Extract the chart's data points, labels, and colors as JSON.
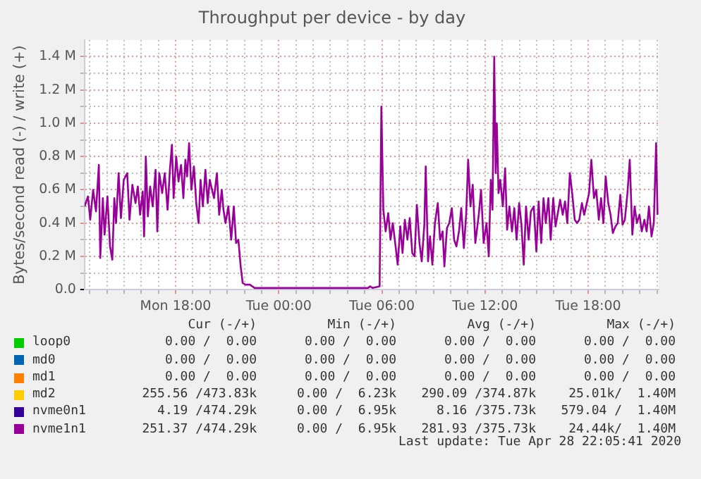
{
  "chart_data": {
    "type": "line",
    "title": "Throughput per device - by day",
    "ylabel": "Bytes/second read (-) / write (+)",
    "xlim": [
      "2020-04-27T12:42",
      "2020-04-28T22:06"
    ],
    "xticks": [
      {
        "value": "2020-04-27T13:00",
        "label": null
      },
      {
        "value": "2020-04-27T14:00",
        "label": null
      },
      {
        "value": "2020-04-27T15:00",
        "label": null
      },
      {
        "value": "2020-04-27T16:00",
        "label": null
      },
      {
        "value": "2020-04-27T17:00",
        "label": null
      },
      {
        "value": "2020-04-27T18:00",
        "label": "Mon 18:00"
      },
      {
        "value": "2020-04-27T19:00",
        "label": null
      },
      {
        "value": "2020-04-27T20:00",
        "label": null
      },
      {
        "value": "2020-04-27T21:00",
        "label": null
      },
      {
        "value": "2020-04-27T22:00",
        "label": null
      },
      {
        "value": "2020-04-27T23:00",
        "label": null
      },
      {
        "value": "2020-04-28T00:00",
        "label": "Tue 00:00"
      },
      {
        "value": "2020-04-28T01:00",
        "label": null
      },
      {
        "value": "2020-04-28T02:00",
        "label": null
      },
      {
        "value": "2020-04-28T03:00",
        "label": null
      },
      {
        "value": "2020-04-28T04:00",
        "label": null
      },
      {
        "value": "2020-04-28T05:00",
        "label": null
      },
      {
        "value": "2020-04-28T06:00",
        "label": "Tue 06:00"
      },
      {
        "value": "2020-04-28T07:00",
        "label": null
      },
      {
        "value": "2020-04-28T08:00",
        "label": null
      },
      {
        "value": "2020-04-28T09:00",
        "label": null
      },
      {
        "value": "2020-04-28T10:00",
        "label": null
      },
      {
        "value": "2020-04-28T11:00",
        "label": null
      },
      {
        "value": "2020-04-28T12:00",
        "label": "Tue 12:00"
      },
      {
        "value": "2020-04-28T13:00",
        "label": null
      },
      {
        "value": "2020-04-28T14:00",
        "label": null
      },
      {
        "value": "2020-04-28T15:00",
        "label": null
      },
      {
        "value": "2020-04-28T16:00",
        "label": null
      },
      {
        "value": "2020-04-28T17:00",
        "label": null
      },
      {
        "value": "2020-04-28T18:00",
        "label": "Tue 18:00"
      },
      {
        "value": "2020-04-28T19:00",
        "label": null
      },
      {
        "value": "2020-04-28T20:00",
        "label": null
      },
      {
        "value": "2020-04-28T21:00",
        "label": null
      },
      {
        "value": "2020-04-28T22:00",
        "label": null
      }
    ],
    "ylim": [
      0,
      1.5
    ],
    "yticks": [
      {
        "value": 0,
        "label": "0.0"
      },
      {
        "value": 0.1,
        "label": null
      },
      {
        "value": 0.2,
        "label": "0.2 M"
      },
      {
        "value": 0.3,
        "label": null
      },
      {
        "value": 0.4,
        "label": "0.4 M"
      },
      {
        "value": 0.5,
        "label": null
      },
      {
        "value": 0.6,
        "label": "0.6 M"
      },
      {
        "value": 0.7,
        "label": null
      },
      {
        "value": 0.8,
        "label": "0.8 M"
      },
      {
        "value": 0.9,
        "label": null
      },
      {
        "value": 1.0,
        "label": "1.0 M"
      },
      {
        "value": 1.1,
        "label": null
      },
      {
        "value": 1.2,
        "label": "1.2 M"
      },
      {
        "value": 1.3,
        "label": null
      },
      {
        "value": 1.4,
        "label": "1.4 M"
      }
    ],
    "grid": true,
    "legend": "bottom",
    "marker": "none",
    "series": [
      {
        "name": "loop0",
        "color": "#00cc00"
      },
      {
        "name": "md0",
        "color": "#0066b3"
      },
      {
        "name": "md1",
        "color": "#ff8000"
      },
      {
        "name": "md2",
        "color": "#ffcc00"
      },
      {
        "name": "nvme0n1",
        "color": "#330099"
      },
      {
        "name": "nvme1n1",
        "color": "#990099",
        "x": [
          "2020-04-27T12:42",
          "2020-04-27T12:54",
          "2020-04-27T13:02",
          "2020-04-27T13:12",
          "2020-04-27T13:22",
          "2020-04-27T13:32",
          "2020-04-27T13:37",
          "2020-04-27T13:46",
          "2020-04-27T13:52",
          "2020-04-27T14:02",
          "2020-04-27T14:11",
          "2020-04-27T14:19",
          "2020-04-27T14:26",
          "2020-04-27T14:32",
          "2020-04-27T14:41",
          "2020-04-27T14:49",
          "2020-04-27T14:59",
          "2020-04-27T15:11",
          "2020-04-27T15:19",
          "2020-04-27T15:29",
          "2020-04-27T15:40",
          "2020-04-27T15:48",
          "2020-04-27T15:56",
          "2020-04-27T16:05",
          "2020-04-27T16:10",
          "2020-04-27T16:16",
          "2020-04-27T16:23",
          "2020-04-27T16:31",
          "2020-04-27T16:40",
          "2020-04-27T16:50",
          "2020-04-27T16:56",
          "2020-04-27T17:03",
          "2020-04-27T17:13",
          "2020-04-27T17:22",
          "2020-04-27T17:32",
          "2020-04-27T17:40",
          "2020-04-27T17:47",
          "2020-04-27T17:53",
          "2020-04-27T18:02",
          "2020-04-27T18:10",
          "2020-04-27T18:19",
          "2020-04-27T18:27",
          "2020-04-27T18:34",
          "2020-04-27T18:40",
          "2020-04-27T18:47",
          "2020-04-27T18:55",
          "2020-04-27T19:04",
          "2020-04-27T19:12",
          "2020-04-27T19:20",
          "2020-04-27T19:27",
          "2020-04-27T19:35",
          "2020-04-27T19:44",
          "2020-04-27T19:52",
          "2020-04-27T19:59",
          "2020-04-27T20:07",
          "2020-04-27T20:14",
          "2020-04-27T20:24",
          "2020-04-27T20:32",
          "2020-04-27T20:41",
          "2020-04-27T20:47",
          "2020-04-27T20:54",
          "2020-04-27T21:04",
          "2020-04-27T21:14",
          "2020-04-27T21:23",
          "2020-04-27T21:31",
          "2020-04-27T21:39",
          "2020-04-27T21:47",
          "2020-04-27T21:54",
          "2020-04-27T22:04",
          "2020-04-27T22:19",
          "2020-04-27T22:36",
          "2020-04-28T01:00",
          "2020-04-28T03:00",
          "2020-04-28T05:12",
          "2020-04-28T05:18",
          "2020-04-28T05:28",
          "2020-04-28T05:52",
          "2020-04-28T05:58",
          "2020-04-28T06:05",
          "2020-04-28T06:13",
          "2020-04-28T06:22",
          "2020-04-28T06:30",
          "2020-04-28T06:38",
          "2020-04-28T06:47",
          "2020-04-28T06:55",
          "2020-04-28T07:04",
          "2020-04-28T07:12",
          "2020-04-28T07:20",
          "2020-04-28T07:29",
          "2020-04-28T07:37",
          "2020-04-28T07:46",
          "2020-04-28T07:54",
          "2020-04-28T08:02",
          "2020-04-28T08:11",
          "2020-04-28T08:19",
          "2020-04-28T08:28",
          "2020-04-28T08:33",
          "2020-04-28T08:41",
          "2020-04-28T08:48",
          "2020-04-28T08:56",
          "2020-04-28T09:05",
          "2020-04-28T09:15",
          "2020-04-28T09:23",
          "2020-04-28T09:32",
          "2020-04-28T09:38",
          "2020-04-28T09:47",
          "2020-04-28T09:55",
          "2020-04-28T10:04",
          "2020-04-28T10:12",
          "2020-04-28T10:20",
          "2020-04-28T10:29",
          "2020-04-28T10:37",
          "2020-04-28T10:46",
          "2020-04-28T10:54",
          "2020-04-28T11:01",
          "2020-04-28T11:09",
          "2020-04-28T11:17",
          "2020-04-28T11:26",
          "2020-04-28T11:38",
          "2020-04-28T11:46",
          "2020-04-28T11:55",
          "2020-04-28T12:05",
          "2020-04-28T12:13",
          "2020-04-28T12:20",
          "2020-04-28T12:26",
          "2020-04-28T12:32",
          "2020-04-28T12:37",
          "2020-04-28T12:41",
          "2020-04-28T12:47",
          "2020-04-28T12:53",
          "2020-04-28T13:02",
          "2020-04-28T13:10",
          "2020-04-28T13:17",
          "2020-04-28T13:25",
          "2020-04-28T13:34",
          "2020-04-28T13:42",
          "2020-04-28T13:50",
          "2020-04-28T13:59",
          "2020-04-28T14:07",
          "2020-04-28T14:15",
          "2020-04-28T14:23",
          "2020-04-28T14:32",
          "2020-04-28T14:40",
          "2020-04-28T14:50",
          "2020-04-28T14:59",
          "2020-04-28T15:07",
          "2020-04-28T15:16",
          "2020-04-28T15:24",
          "2020-04-28T15:32",
          "2020-04-28T15:41",
          "2020-04-28T15:49",
          "2020-04-28T15:58",
          "2020-04-28T16:06",
          "2020-04-28T16:14",
          "2020-04-28T16:22",
          "2020-04-28T16:31",
          "2020-04-28T16:39",
          "2020-04-28T16:47",
          "2020-04-28T16:56",
          "2020-04-28T17:04",
          "2020-04-28T17:13",
          "2020-04-28T17:21",
          "2020-04-28T17:29",
          "2020-04-28T17:38",
          "2020-04-28T17:46",
          "2020-04-28T18:03",
          "2020-04-28T18:11",
          "2020-04-28T18:20",
          "2020-04-28T18:28",
          "2020-04-28T18:37",
          "2020-04-28T18:45",
          "2020-04-28T18:53",
          "2020-04-28T19:01",
          "2020-04-28T19:10",
          "2020-04-28T19:18",
          "2020-04-28T19:26",
          "2020-04-28T19:35",
          "2020-04-28T19:43",
          "2020-04-28T19:52",
          "2020-04-28T20:00",
          "2020-04-28T20:08",
          "2020-04-28T20:17",
          "2020-04-28T20:25",
          "2020-04-28T20:34",
          "2020-04-28T20:42",
          "2020-04-28T20:50",
          "2020-04-28T20:59",
          "2020-04-28T21:07",
          "2020-04-28T21:16",
          "2020-04-28T21:24",
          "2020-04-28T21:32",
          "2020-04-28T21:41",
          "2020-04-28T21:49",
          "2020-04-28T21:57",
          "2020-04-28T22:02"
        ],
        "values": [
          0.5,
          0.56,
          0.42,
          0.6,
          0.47,
          0.75,
          0.19,
          0.55,
          0.33,
          0.56,
          0.26,
          0.18,
          0.55,
          0.4,
          0.7,
          0.43,
          0.66,
          0.7,
          0.42,
          0.63,
          0.52,
          0.62,
          0.45,
          0.59,
          0.32,
          0.8,
          0.44,
          0.62,
          0.5,
          0.72,
          0.35,
          0.7,
          0.58,
          0.7,
          0.48,
          0.72,
          0.87,
          0.55,
          0.8,
          0.65,
          0.75,
          0.55,
          0.78,
          0.68,
          0.88,
          0.6,
          0.74,
          0.52,
          0.4,
          0.66,
          0.5,
          0.72,
          0.52,
          0.66,
          0.6,
          0.55,
          0.7,
          0.45,
          0.6,
          0.48,
          0.4,
          0.5,
          0.3,
          0.5,
          0.28,
          0.3,
          0.14,
          0.04,
          0.03,
          0.03,
          0.01,
          0.01,
          0.01,
          0.01,
          0.02,
          0.01,
          0.02,
          1.1,
          0.48,
          0.35,
          0.46,
          0.3,
          0.4,
          0.27,
          0.15,
          0.38,
          0.22,
          0.42,
          0.3,
          0.43,
          0.22,
          0.2,
          0.51,
          0.28,
          0.17,
          0.39,
          0.74,
          0.17,
          0.32,
          0.15,
          0.4,
          0.52,
          0.3,
          0.35,
          0.14,
          0.37,
          0.4,
          0.49,
          0.3,
          0.26,
          0.35,
          0.49,
          0.25,
          0.45,
          0.78,
          0.5,
          0.63,
          0.28,
          0.45,
          0.6,
          0.28,
          0.4,
          0.2,
          0.66,
          0.48,
          1.4,
          0.7,
          1.0,
          0.58,
          0.66,
          0.5,
          0.73,
          0.36,
          0.5,
          0.35,
          0.49,
          0.3,
          0.52,
          0.39,
          0.15,
          0.5,
          0.3,
          0.47,
          0.5,
          0.23,
          0.53,
          0.28,
          0.55,
          0.4,
          0.55,
          0.3,
          0.55,
          0.38,
          0.46,
          0.54,
          0.45,
          0.53,
          0.4,
          0.7,
          0.58,
          0.42,
          0.4,
          0.42,
          0.52,
          0.45,
          0.58,
          0.78,
          0.55,
          0.6,
          0.42,
          0.55,
          0.4,
          0.68,
          0.52,
          0.45,
          0.34,
          0.38,
          0.4,
          0.57,
          0.39,
          0.42,
          0.58,
          0.78,
          0.33,
          0.5,
          0.4,
          0.45,
          0.35,
          0.42,
          0.35,
          0.5,
          0.32,
          0.4,
          0.88,
          0.45
        ]
      }
    ],
    "annotations": [
      "Cur (-/+)",
      "Min (-/+)",
      "Avg (-/+)",
      "Max (-/+)",
      "0.00 /  0.00",
      "0.00 /  0.00",
      "0.00 /  0.00",
      "0.00 /  0.00",
      "0.00 /  0.00",
      "0.00 /  0.00",
      "0.00 /  0.00",
      "0.00 /  0.00",
      "0.00 /  0.00",
      "0.00 /  0.00",
      "0.00 /  0.00",
      "0.00 /  0.00",
      "255.56 /473.83k",
      "0.00 /  6.23k",
      "290.09 /374.87k",
      "25.01k/  1.40M",
      "4.19 /474.29k",
      "0.00 /  6.95k",
      "8.16 /375.73k",
      "579.04 /  1.40M",
      "251.37 /474.29k",
      "0.00 /  6.95k",
      "281.93 /375.73k",
      "24.44k/  1.40M",
      "Last update: Tue Apr 28 22:05:41 2020"
    ]
  }
}
